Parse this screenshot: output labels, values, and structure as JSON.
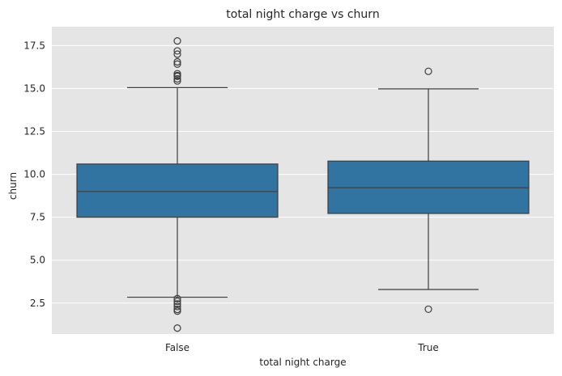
{
  "chart_data": {
    "type": "box",
    "title": "total night charge vs churn",
    "xlabel": "total night charge",
    "ylabel": "churn",
    "categories": [
      "False",
      "True"
    ],
    "ylim": [
      0.7,
      18.6
    ],
    "yticks": [
      "2.5",
      "5.0",
      "7.5",
      "10.0",
      "12.5",
      "15.0",
      "17.5"
    ],
    "grid": true,
    "colors": {
      "background": "#e5e5e5",
      "box": "#3274a1",
      "line": "#3d3d3d",
      "grid": "#ffffff"
    },
    "boxes": [
      {
        "category": "False",
        "whisker_low": 2.84,
        "q1": 7.5,
        "median": 9.0,
        "q3": 10.6,
        "whisker_high": 15.05,
        "outliers": [
          17.77,
          17.19,
          17.0,
          16.55,
          16.42,
          15.86,
          15.76,
          15.71,
          15.56,
          15.44,
          2.76,
          2.6,
          2.45,
          2.3,
          2.13,
          2.03,
          1.04
        ]
      },
      {
        "category": "True",
        "whisker_low": 3.29,
        "q1": 7.72,
        "median": 9.22,
        "q3": 10.77,
        "whisker_high": 14.98,
        "outliers": [
          16.0,
          2.14
        ]
      }
    ]
  }
}
